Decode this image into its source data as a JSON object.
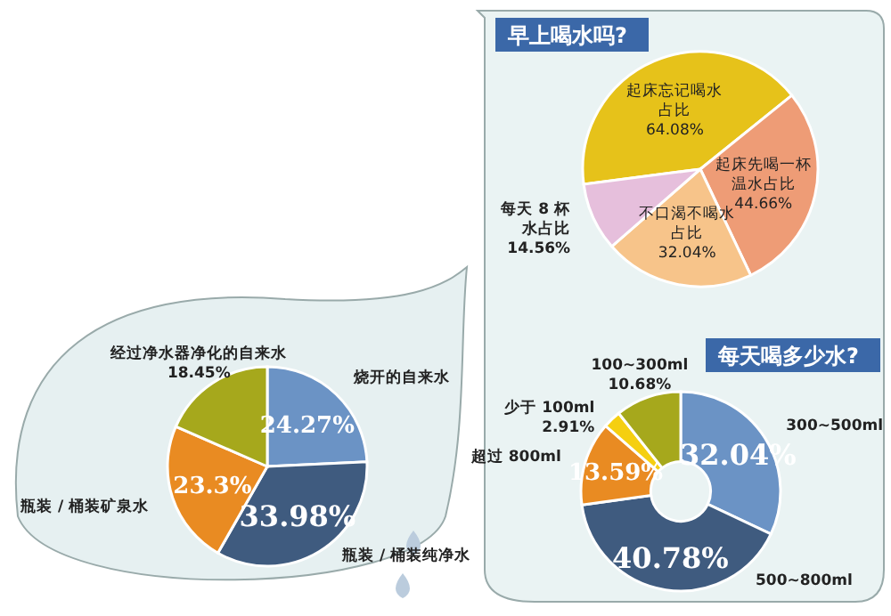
{
  "chart_data": [
    {
      "type": "pie",
      "categories": [
        "烧开的自来水",
        "瓶装 / 桶装纯净水",
        "瓶装 / 桶装矿泉水",
        "经过净水器净化的自来水"
      ],
      "values": [
        24.27,
        33.98,
        23.3,
        18.45
      ],
      "colors": [
        "#6b93c5",
        "#3f5b7f",
        "#e98b22",
        "#a6a81c"
      ],
      "value_labels": [
        "24.27%",
        "33.98%",
        "23.3%",
        "18.45%"
      ]
    },
    {
      "type": "pie",
      "title": "早上喝水吗?",
      "categories": [
        "起床忘记喝水占比",
        "起床先喝一杯温水占比",
        "不口渴不喝水占比",
        "每天 8 杯水占比"
      ],
      "values": [
        64.08,
        44.66,
        32.04,
        14.56
      ],
      "colors": [
        "#e6c21a",
        "#ee9c76",
        "#f7c48a",
        "#e6bfdc"
      ],
      "value_labels": [
        "64.08%",
        "44.66%",
        "32.04%",
        "14.56%"
      ]
    },
    {
      "type": "donut",
      "title": "每天喝多少水?",
      "categories": [
        "300~500ml",
        "500~800ml",
        "超过 800ml",
        "少于 100ml",
        "100~300ml"
      ],
      "values": [
        32.04,
        40.78,
        13.59,
        2.91,
        10.68
      ],
      "colors": [
        "#6b93c5",
        "#3f5b7f",
        "#e98b22",
        "#f5cf10",
        "#a6a81c"
      ],
      "value_labels": [
        "32.04%",
        "40.78%",
        "13.59%",
        "2.91%",
        "10.68%"
      ]
    }
  ]
}
